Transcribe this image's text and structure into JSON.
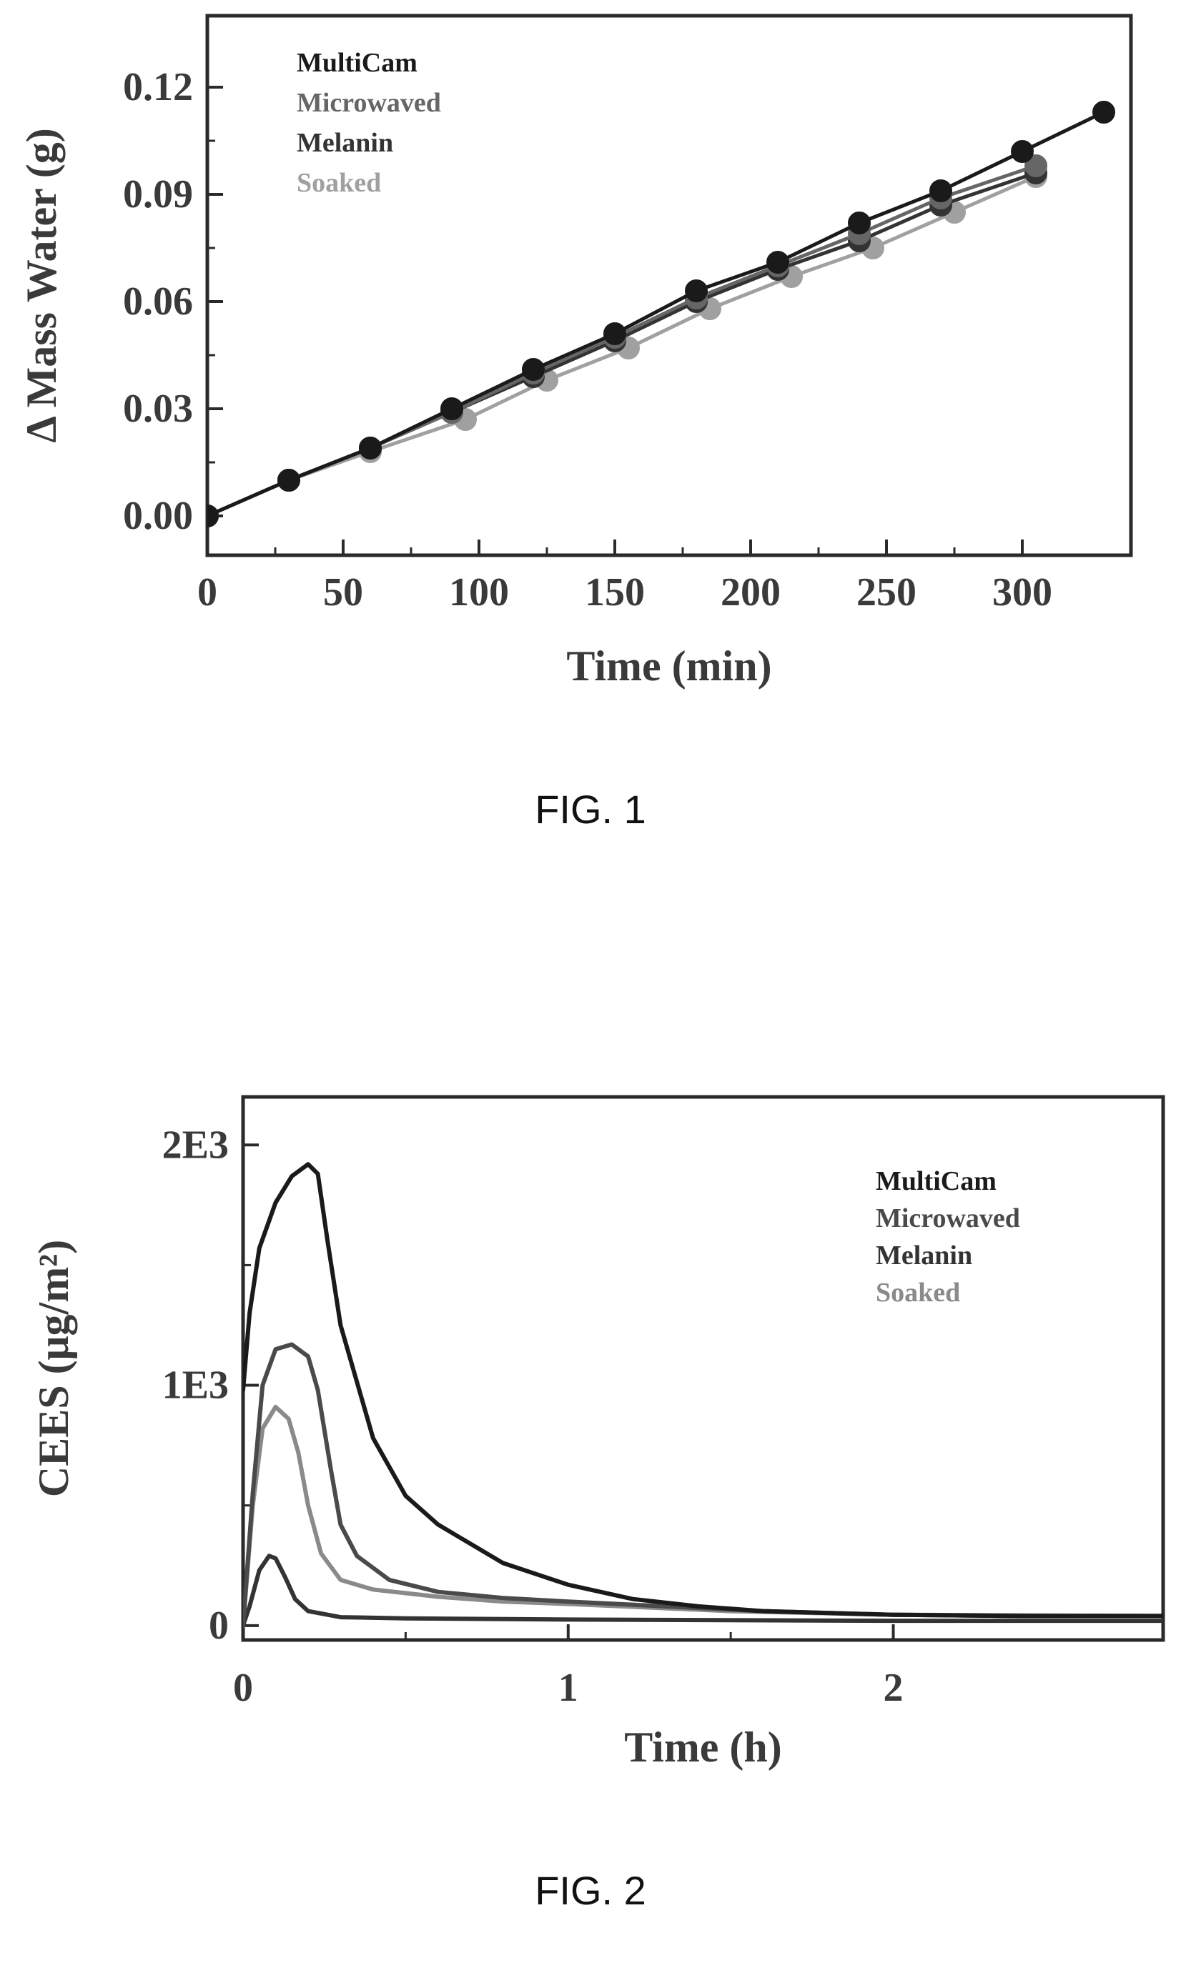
{
  "figures": [
    {
      "caption": "FIG. 1"
    },
    {
      "caption": "FIG. 2"
    }
  ],
  "chart_data": [
    {
      "type": "line",
      "xlabel": "Time (min)",
      "ylabel": "Δ Mass Water (g)",
      "xlim": [
        0,
        340
      ],
      "ylim": [
        -0.011,
        0.14
      ],
      "xticks": [
        0,
        50,
        100,
        150,
        200,
        250,
        300
      ],
      "xtick_labels": [
        "0",
        "50",
        "100",
        "150",
        "200",
        "250",
        "300"
      ],
      "yticks": [
        0.0,
        0.03,
        0.06,
        0.09,
        0.12
      ],
      "ytick_labels": [
        "0.00",
        "0.03",
        "0.06",
        "0.09",
        "0.12"
      ],
      "legend_placement": "top-left",
      "grid": false,
      "series": [
        {
          "name": "MultiCam",
          "color": "#1a1a1a",
          "x": [
            0,
            30,
            60,
            90,
            120,
            150,
            180,
            210,
            240,
            270,
            300,
            330
          ],
          "y": [
            0.0,
            0.01,
            0.019,
            0.03,
            0.041,
            0.051,
            0.063,
            0.071,
            0.082,
            0.091,
            0.102,
            0.113
          ]
        },
        {
          "name": "Microwaved",
          "color": "#666666",
          "x": [
            0,
            30,
            60,
            90,
            120,
            150,
            180,
            210,
            240,
            270,
            305
          ],
          "y": [
            0.0,
            0.01,
            0.019,
            0.029,
            0.04,
            0.05,
            0.061,
            0.07,
            0.079,
            0.089,
            0.098
          ]
        },
        {
          "name": "Melanin",
          "color": "#333333",
          "x": [
            0,
            30,
            60,
            90,
            120,
            150,
            180,
            210,
            240,
            270,
            305
          ],
          "y": [
            0.0,
            0.01,
            0.019,
            0.029,
            0.039,
            0.049,
            0.06,
            0.069,
            0.077,
            0.087,
            0.096
          ]
        },
        {
          "name": "Soaked",
          "color": "#a0a0a0",
          "x": [
            0,
            30,
            60,
            95,
            125,
            155,
            185,
            215,
            245,
            275,
            305
          ],
          "y": [
            0.0,
            0.01,
            0.018,
            0.027,
            0.038,
            0.047,
            0.058,
            0.067,
            0.075,
            0.085,
            0.095
          ]
        }
      ]
    },
    {
      "type": "line",
      "xlabel": "Time (h)",
      "ylabel": "CEES (μg/m²)",
      "xlim": [
        0,
        2.83
      ],
      "ylim": [
        -60,
        2200
      ],
      "xticks": [
        0,
        1,
        2
      ],
      "xtick_labels": [
        "0",
        "1",
        "2"
      ],
      "yticks": [
        0,
        1000,
        2000
      ],
      "ytick_labels": [
        "0",
        "1E3",
        "2E3"
      ],
      "legend_placement": "top-right",
      "grid": false,
      "series": [
        {
          "name": "MultiCam",
          "color": "#1a1a1a",
          "x": [
            0.0,
            0.02,
            0.05,
            0.1,
            0.15,
            0.2,
            0.23,
            0.26,
            0.3,
            0.4,
            0.5,
            0.6,
            0.8,
            1.0,
            1.2,
            1.4,
            1.6,
            2.0,
            2.4,
            2.83
          ],
          "y": [
            980,
            1300,
            1570,
            1760,
            1870,
            1920,
            1880,
            1600,
            1250,
            780,
            540,
            420,
            260,
            170,
            110,
            80,
            60,
            45,
            40,
            40
          ]
        },
        {
          "name": "Microwaved",
          "color": "#4a4a4a",
          "x": [
            0.0,
            0.03,
            0.06,
            0.1,
            0.15,
            0.2,
            0.23,
            0.27,
            0.3,
            0.35,
            0.45,
            0.6,
            0.8,
            1.0,
            1.3,
            1.6,
            2.0,
            2.4,
            2.83
          ],
          "y": [
            0,
            550,
            1000,
            1150,
            1170,
            1120,
            980,
            650,
            420,
            290,
            190,
            140,
            115,
            100,
            80,
            60,
            45,
            40,
            40
          ]
        },
        {
          "name": "Melanin",
          "color": "#333333",
          "x": [
            0.0,
            0.02,
            0.05,
            0.08,
            0.1,
            0.13,
            0.16,
            0.2,
            0.3,
            0.5,
            1.0,
            2.0,
            2.83
          ],
          "y": [
            0,
            80,
            230,
            290,
            280,
            200,
            110,
            60,
            35,
            30,
            25,
            20,
            20
          ]
        },
        {
          "name": "Soaked",
          "color": "#8a8a8a",
          "x": [
            0.0,
            0.03,
            0.06,
            0.1,
            0.14,
            0.17,
            0.2,
            0.24,
            0.3,
            0.4,
            0.6,
            0.8,
            1.0,
            1.5,
            2.0,
            2.83
          ],
          "y": [
            0,
            500,
            820,
            910,
            860,
            720,
            500,
            300,
            190,
            150,
            120,
            100,
            90,
            60,
            45,
            40
          ]
        }
      ]
    }
  ]
}
